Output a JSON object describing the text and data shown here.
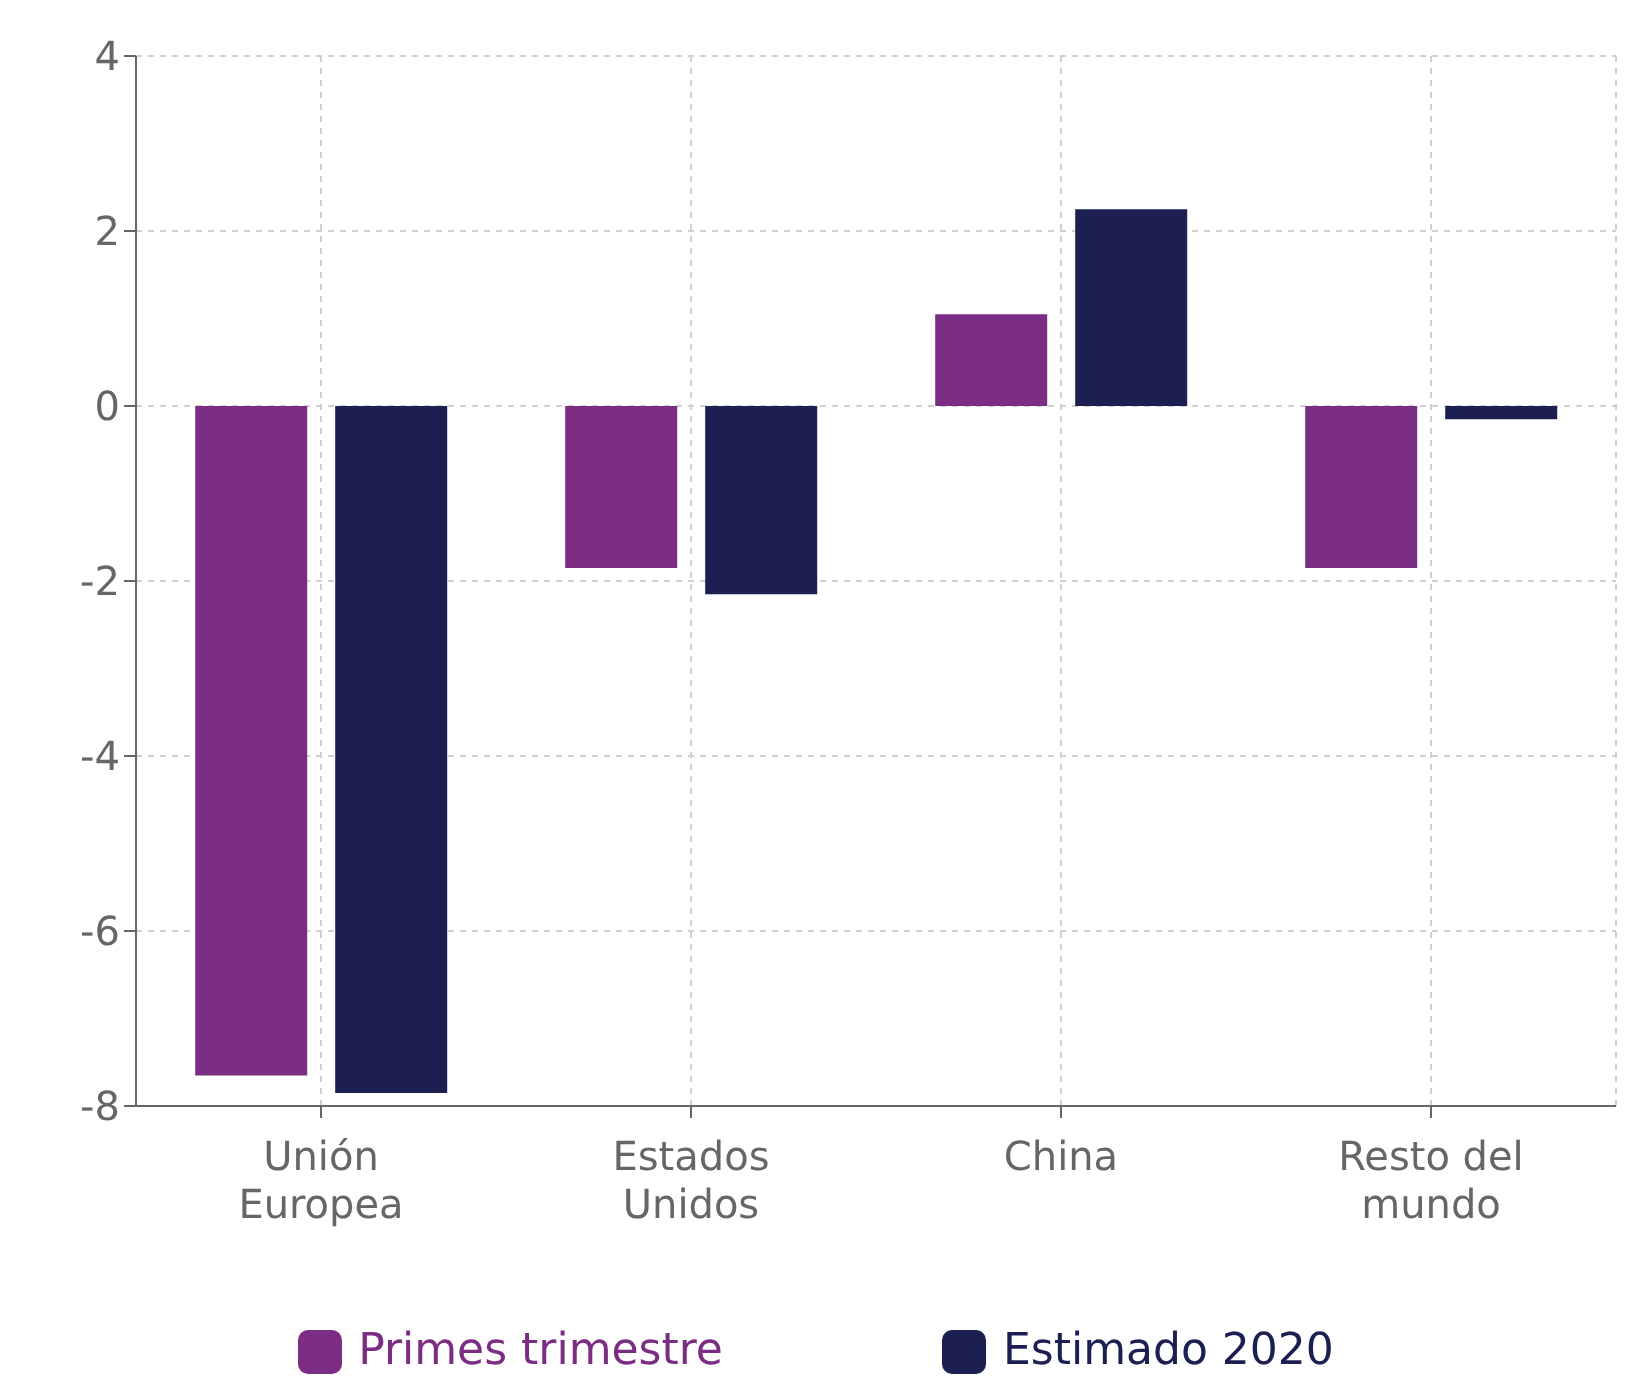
{
  "chart_data": {
    "type": "bar",
    "categories": [
      "Unión Europea",
      "Estados Unidos",
      "China",
      "Resto del mundo"
    ],
    "series": [
      {
        "name": "Primes trimestre",
        "color": "#7b2d84",
        "values": [
          -7.65,
          -1.85,
          1.05,
          -1.85
        ]
      },
      {
        "name": "Estimado 2020",
        "color": "#1b1f52",
        "values": [
          -7.85,
          -2.15,
          2.25,
          -0.15
        ]
      }
    ],
    "ylim": [
      -8,
      4
    ],
    "yticks": [
      -8,
      -6,
      -4,
      -2,
      0,
      2,
      4
    ],
    "grid": true,
    "legend": "bottom"
  }
}
